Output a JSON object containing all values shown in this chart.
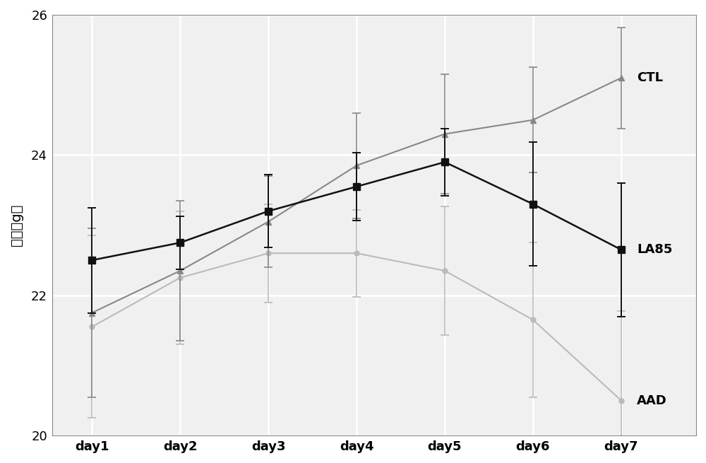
{
  "x_labels": [
    "day1",
    "day2",
    "day3",
    "day4",
    "day5",
    "day6",
    "day7"
  ],
  "x_values": [
    1,
    2,
    3,
    4,
    5,
    6,
    7
  ],
  "CTL_y": [
    21.75,
    22.35,
    23.05,
    23.85,
    24.3,
    24.5,
    25.1
  ],
  "CTL_err": [
    1.2,
    1.0,
    0.65,
    0.75,
    0.85,
    0.75,
    0.72
  ],
  "LA85_y": [
    22.5,
    22.75,
    23.2,
    23.55,
    23.9,
    23.3,
    22.65
  ],
  "LA85_err": [
    0.75,
    0.38,
    0.52,
    0.48,
    0.48,
    0.88,
    0.95
  ],
  "AAD_y": [
    21.55,
    22.25,
    22.6,
    22.6,
    22.35,
    21.65,
    20.5
  ],
  "AAD_err": [
    1.3,
    0.95,
    0.7,
    0.62,
    0.92,
    1.1,
    1.28
  ],
  "CTL_color": "#888888",
  "LA85_color": "#111111",
  "AAD_color": "#bbbbbb",
  "ylabel": "体重（g）",
  "ylim": [
    20,
    26
  ],
  "yticks": [
    20,
    22,
    24,
    26
  ],
  "background_color": "#ffffff",
  "plot_bg_color": "#f0f0f0",
  "grid_color": "#ffffff",
  "label_fontsize": 14,
  "tick_fontsize": 13,
  "annotation_fontsize": 13
}
